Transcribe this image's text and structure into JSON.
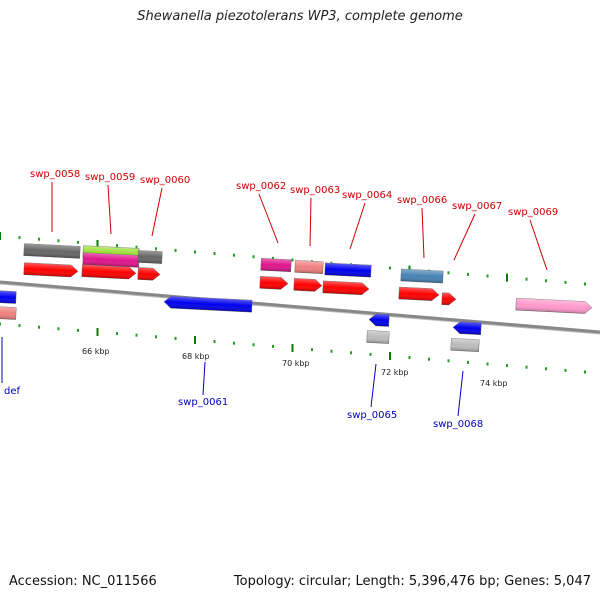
{
  "title": "Shewanella piezotolerans WP3, complete genome",
  "footer": {
    "accession": "Accession: NC_011566",
    "summary": "Topology: circular; Length: 5,396,476 bp; Genes: 5,047"
  },
  "colors": {
    "top_label": "#cc0000",
    "bottom_label": "#0000bb",
    "backbone": "#888888",
    "tick_dark": "#0a7a0a",
    "tick_light": "#2a9a2a"
  },
  "scale_labels": [
    "66 kbp",
    "68 kbp",
    "70 kbp",
    "72 kbp",
    "74 kbp"
  ],
  "top_gene_labels": [
    "swp_0058",
    "swp_0059",
    "swp_0060",
    "swp_0062",
    "swp_0063",
    "swp_0064",
    "swp_0066",
    "swp_0067",
    "swp_0069"
  ],
  "bottom_gene_labels": [
    "def",
    "swp_0061",
    "swp_0065",
    "swp_0068"
  ]
}
